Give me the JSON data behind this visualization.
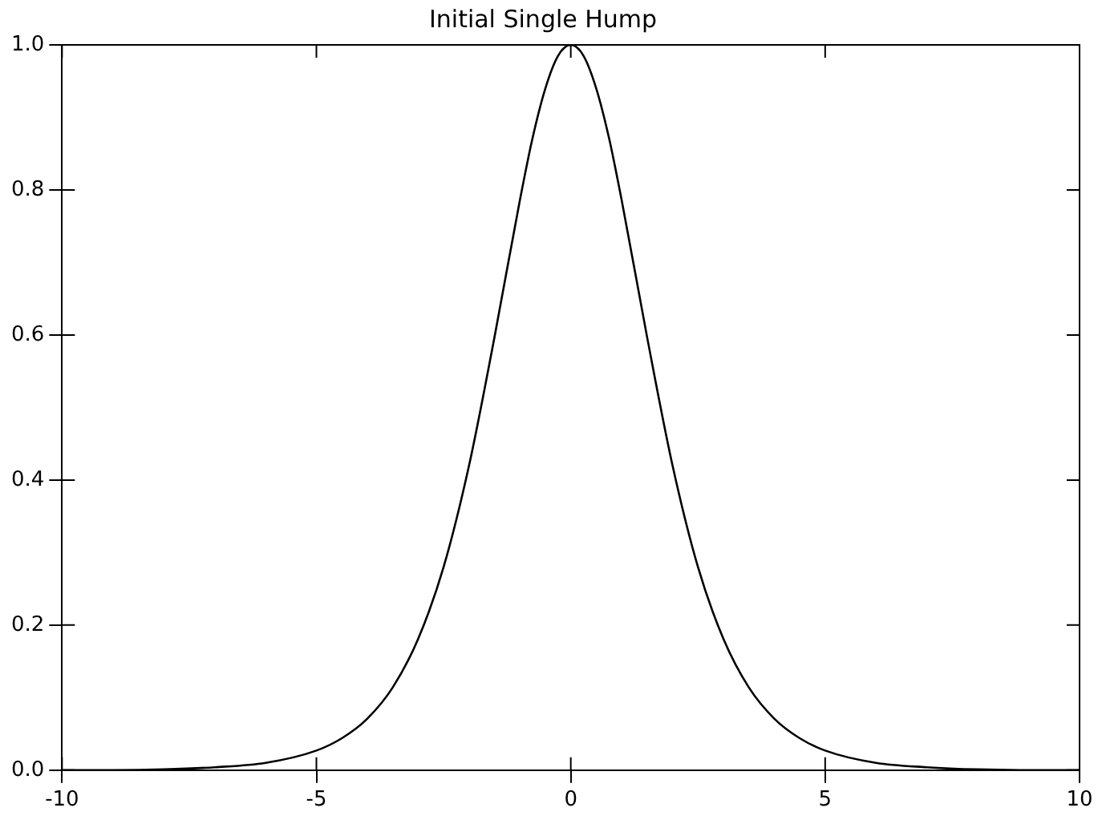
{
  "chart_data": {
    "type": "line",
    "title": "Initial Single Hump",
    "x": [
      -10,
      -9,
      -8,
      -7,
      -6,
      -5,
      -4.5,
      -4,
      -3.5,
      -3,
      -2.5,
      -2,
      -1.5,
      -1,
      -0.75,
      -0.5,
      -0.25,
      0,
      0.25,
      0.5,
      0.75,
      1,
      1.5,
      2,
      2.5,
      3,
      3.5,
      4,
      4.5,
      5,
      6,
      7,
      8,
      9,
      10
    ],
    "series": [
      {
        "color": "#000000",
        "values": [
          0.0,
          0.0,
          0.001,
          0.004,
          0.01,
          0.027,
          0.044,
          0.071,
          0.114,
          0.181,
          0.28,
          0.42,
          0.597,
          0.786,
          0.872,
          0.94,
          0.985,
          1.0,
          0.985,
          0.94,
          0.872,
          0.786,
          0.597,
          0.42,
          0.28,
          0.181,
          0.114,
          0.071,
          0.044,
          0.027,
          0.01,
          0.004,
          0.001,
          0.0,
          0.0
        ]
      }
    ],
    "xlim": [
      -10,
      10
    ],
    "xticks": [
      -10,
      -5,
      0,
      5,
      10
    ],
    "ylim": [
      0,
      1
    ],
    "yticks": [
      {
        "value": 0,
        "label": "0.0"
      },
      {
        "value": 0.2,
        "label": "0.2"
      },
      {
        "value": 0.4,
        "label": "0.4"
      },
      {
        "value": 0.6,
        "label": "0.6"
      },
      {
        "value": 0.8,
        "label": "0.8"
      },
      {
        "value": 1,
        "label": "1.0"
      }
    ],
    "grid": false,
    "legend": false,
    "marker": "none",
    "line_style": "solid"
  }
}
